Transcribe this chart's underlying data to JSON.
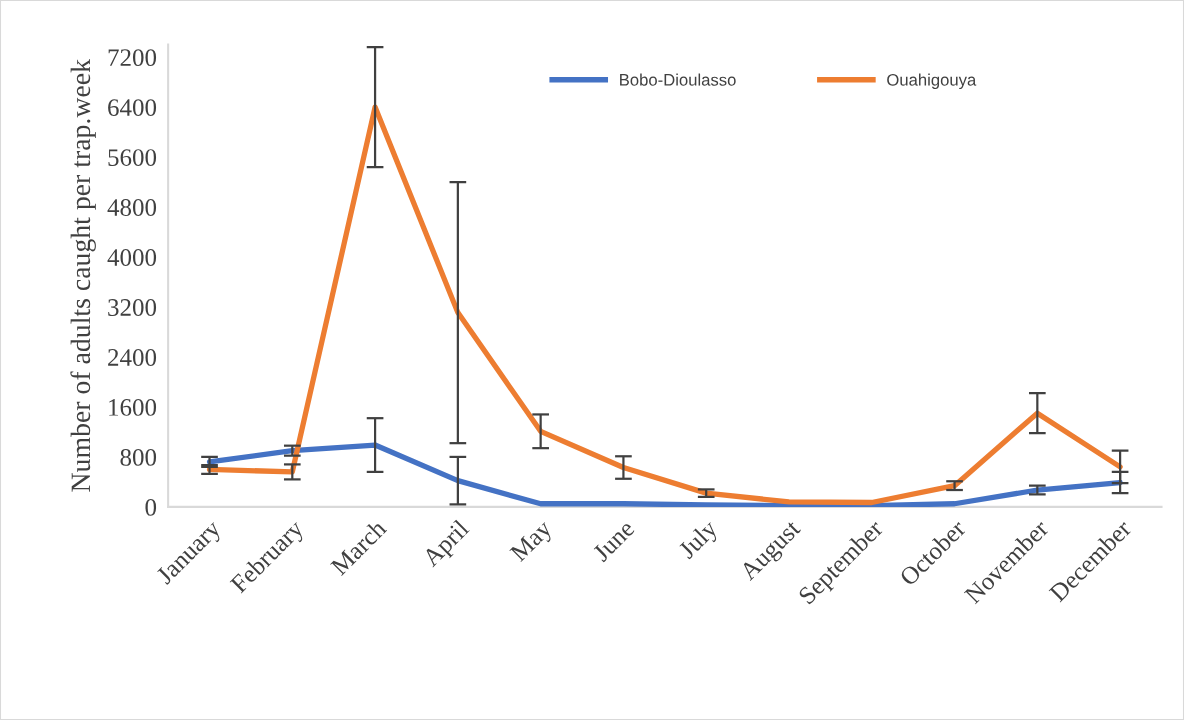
{
  "chart_data": {
    "type": "line",
    "ylabel": "Number of adults caught per trap.week",
    "categories": [
      "January",
      "February",
      "March",
      "April",
      "May",
      "June",
      "July",
      "August",
      "September",
      "October",
      "November",
      "December"
    ],
    "series": [
      {
        "name": "Bobo-Dioulasso",
        "color": "#4472c4",
        "values": [
          720,
          900,
          990,
          420,
          50,
          50,
          30,
          20,
          20,
          50,
          270,
          390
        ],
        "errors": [
          80,
          80,
          430,
          380,
          null,
          null,
          null,
          null,
          null,
          null,
          70,
          170
        ]
      },
      {
        "name": "Ouahigouya",
        "color": "#ed7d31",
        "values": [
          600,
          560,
          6400,
          3110,
          1210,
          630,
          220,
          80,
          70,
          340,
          1500,
          640
        ],
        "errors": [
          70,
          120,
          960,
          2090,
          270,
          180,
          60,
          null,
          null,
          70,
          320,
          260
        ]
      }
    ],
    "ylim": [
      0,
      7400
    ],
    "yticks": [
      0,
      800,
      1600,
      2400,
      3200,
      4000,
      4800,
      5600,
      6400,
      7200
    ],
    "grid": false,
    "legend": "top",
    "marker": "none",
    "line_style": "solid"
  }
}
